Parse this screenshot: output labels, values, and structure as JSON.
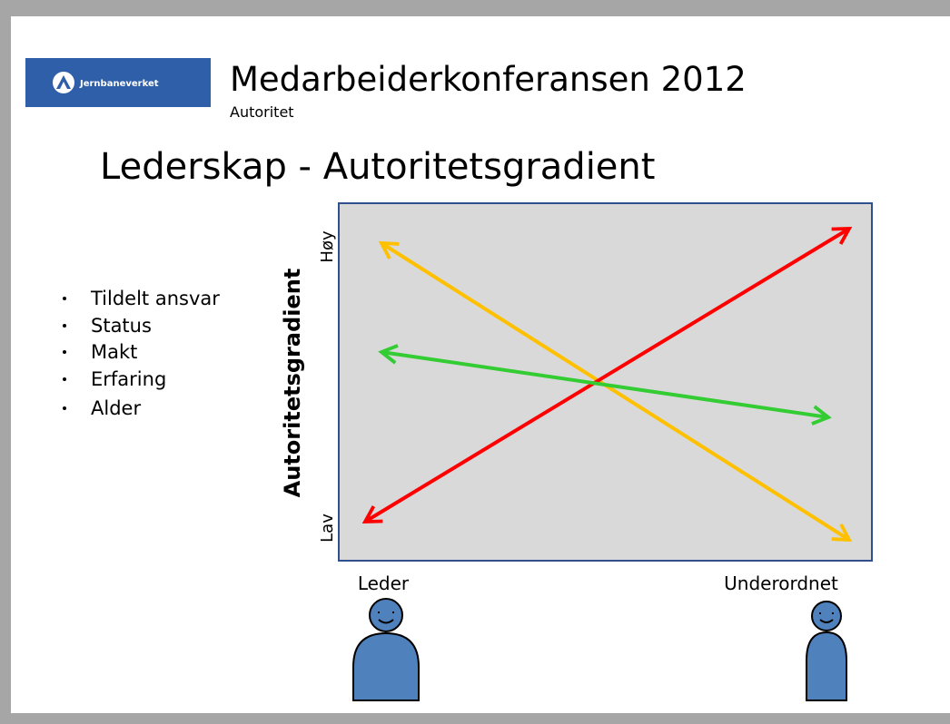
{
  "header": {
    "logo_text": "Jernbaneverket",
    "title": "Medarbeiderkonferansen 2012",
    "subtitle": "Autoritet"
  },
  "heading": "Lederskap - Autoritetsgradient",
  "bullets": [
    "Tildelt ansvar",
    "Status",
    "Makt",
    "Erfaring",
    "Alder"
  ],
  "diagram": {
    "y_axis_label": "Autoritetsgradient",
    "y_high": "Høy",
    "y_low": "Lav",
    "x_left": "Leder",
    "x_right": "Underordnet"
  }
}
